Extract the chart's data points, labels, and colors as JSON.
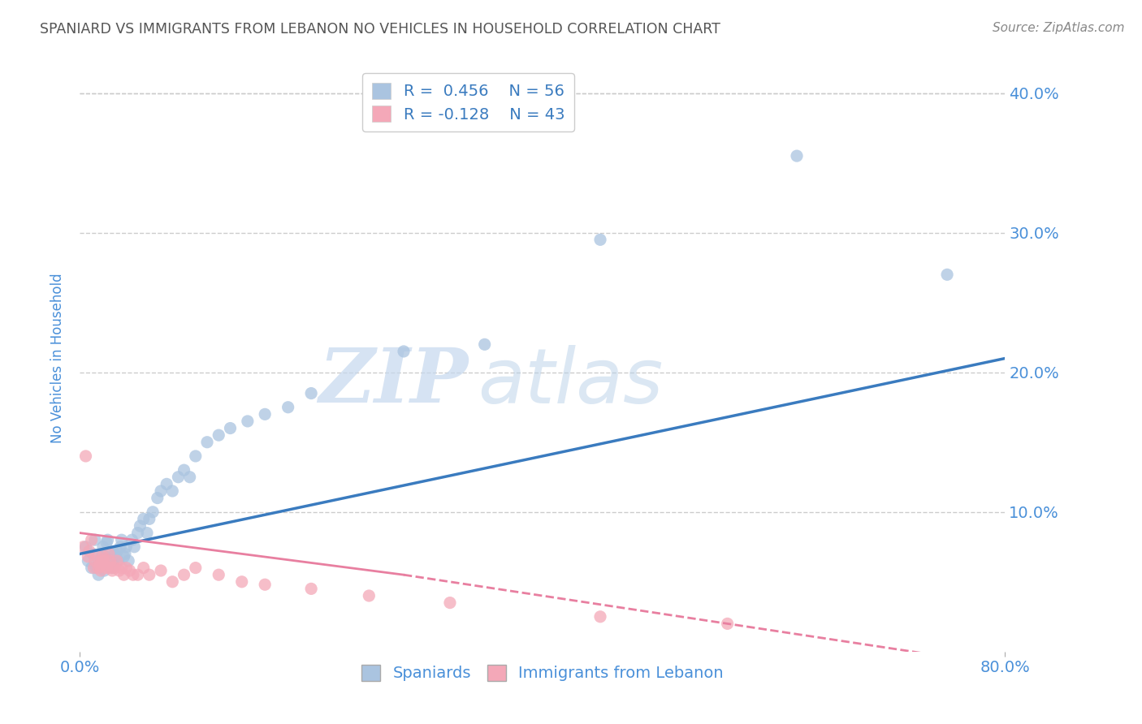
{
  "title": "SPANIARD VS IMMIGRANTS FROM LEBANON NO VEHICLES IN HOUSEHOLD CORRELATION CHART",
  "source_text": "Source: ZipAtlas.com",
  "ylabel": "No Vehicles in Household",
  "xlim": [
    0.0,
    0.8
  ],
  "ylim": [
    0.0,
    0.42
  ],
  "ytick_positions": [
    0.0,
    0.1,
    0.2,
    0.3,
    0.4
  ],
  "ytick_labels": [
    "",
    "10.0%",
    "20.0%",
    "30.0%",
    "40.0%"
  ],
  "grid_color": "#cccccc",
  "background_color": "#ffffff",
  "watermark_zip": "ZIP",
  "watermark_atlas": "atlas",
  "legend_R1": "R =  0.456",
  "legend_N1": "N = 56",
  "legend_R2": "R = -0.128",
  "legend_N2": "N = 43",
  "label1": "Spaniards",
  "label2": "Immigrants from Lebanon",
  "color1": "#aac4e0",
  "color2": "#f4a8b8",
  "trendline1_color": "#3a7bbf",
  "trendline2_color": "#e87fa0",
  "title_color": "#555555",
  "tick_color": "#4a90d9",
  "spaniards_x": [
    0.005,
    0.007,
    0.01,
    0.011,
    0.013,
    0.014,
    0.016,
    0.017,
    0.019,
    0.02,
    0.021,
    0.022,
    0.023,
    0.024,
    0.025,
    0.026,
    0.028,
    0.029,
    0.03,
    0.031,
    0.032,
    0.033,
    0.035,
    0.036,
    0.038,
    0.039,
    0.04,
    0.042,
    0.045,
    0.047,
    0.05,
    0.052,
    0.055,
    0.058,
    0.06,
    0.063,
    0.067,
    0.07,
    0.075,
    0.08,
    0.085,
    0.09,
    0.095,
    0.1,
    0.11,
    0.12,
    0.13,
    0.145,
    0.16,
    0.18,
    0.2,
    0.28,
    0.35,
    0.45,
    0.62,
    0.75
  ],
  "spaniards_y": [
    0.075,
    0.065,
    0.06,
    0.07,
    0.08,
    0.06,
    0.055,
    0.065,
    0.068,
    0.075,
    0.058,
    0.068,
    0.078,
    0.08,
    0.065,
    0.07,
    0.06,
    0.065,
    0.07,
    0.068,
    0.072,
    0.065,
    0.075,
    0.08,
    0.068,
    0.07,
    0.075,
    0.065,
    0.08,
    0.075,
    0.085,
    0.09,
    0.095,
    0.085,
    0.095,
    0.1,
    0.11,
    0.115,
    0.12,
    0.115,
    0.125,
    0.13,
    0.125,
    0.14,
    0.15,
    0.155,
    0.16,
    0.165,
    0.17,
    0.175,
    0.185,
    0.215,
    0.22,
    0.295,
    0.355,
    0.27
  ],
  "lebanon_x": [
    0.003,
    0.005,
    0.007,
    0.008,
    0.01,
    0.012,
    0.013,
    0.015,
    0.016,
    0.017,
    0.018,
    0.019,
    0.02,
    0.021,
    0.022,
    0.023,
    0.025,
    0.026,
    0.027,
    0.028,
    0.03,
    0.032,
    0.034,
    0.036,
    0.038,
    0.04,
    0.043,
    0.046,
    0.05,
    0.055,
    0.06,
    0.07,
    0.08,
    0.09,
    0.1,
    0.12,
    0.14,
    0.16,
    0.2,
    0.25,
    0.32,
    0.45,
    0.56
  ],
  "lebanon_y": [
    0.075,
    0.14,
    0.068,
    0.072,
    0.08,
    0.06,
    0.065,
    0.068,
    0.06,
    0.062,
    0.058,
    0.065,
    0.068,
    0.065,
    0.062,
    0.06,
    0.07,
    0.065,
    0.06,
    0.058,
    0.06,
    0.065,
    0.058,
    0.06,
    0.055,
    0.06,
    0.058,
    0.055,
    0.055,
    0.06,
    0.055,
    0.058,
    0.05,
    0.055,
    0.06,
    0.055,
    0.05,
    0.048,
    0.045,
    0.04,
    0.035,
    0.025,
    0.02
  ]
}
